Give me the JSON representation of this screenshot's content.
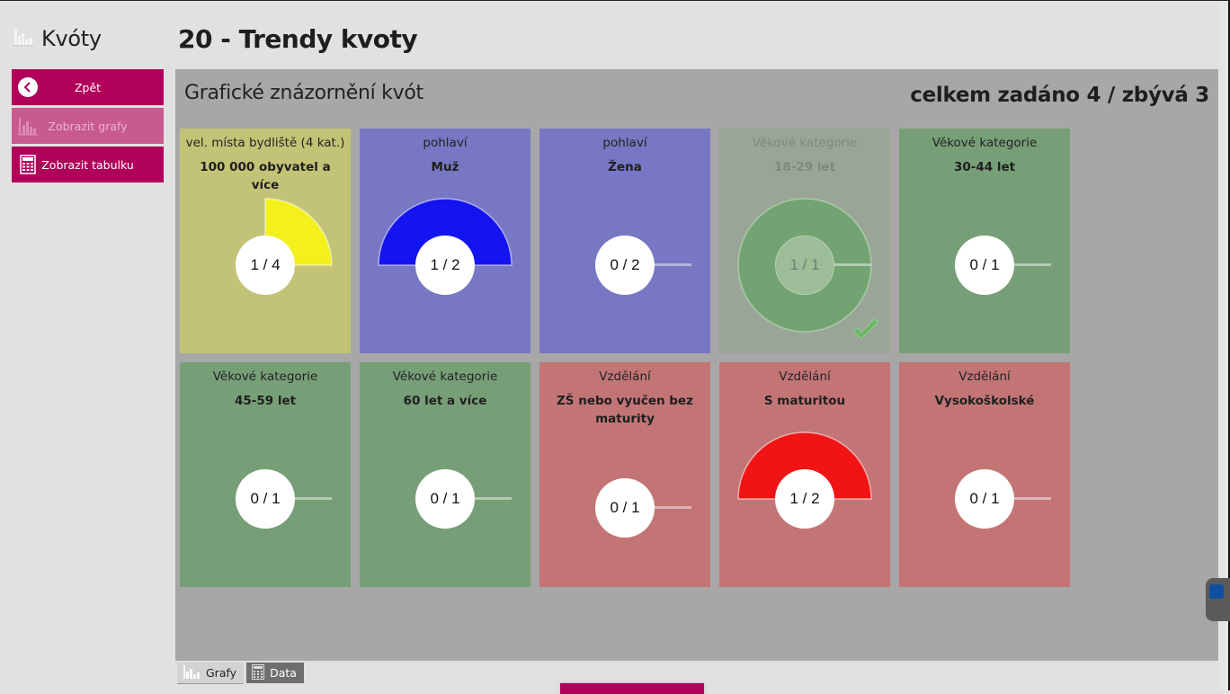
{
  "app": {
    "title": "Kvóty",
    "icon": "bar-chart-icon"
  },
  "page_title": "20 - Trendy kvoty",
  "sidebar": {
    "buttons": [
      {
        "label": "Zpět",
        "icon": "back-arrow-icon",
        "enabled": true
      },
      {
        "label": "Zobrazit grafy",
        "icon": "bar-chart-icon",
        "enabled": false
      },
      {
        "label": "Zobrazit tabulku",
        "icon": "calculator-icon",
        "enabled": true
      }
    ]
  },
  "panel": {
    "title": "Grafické znázornění kvót",
    "summary": "celkem zadáno 4 / zbývá 3"
  },
  "cards": [
    {
      "category": "vel. místa bydliště (4 kat.)",
      "value": "100 000 obyvatel a více",
      "ratio": "1 / 4",
      "done": 1,
      "total": 4,
      "bg": "#c3c377",
      "fill": "#f3f01c",
      "complete": false
    },
    {
      "category": "pohlaví",
      "value": "Muž",
      "ratio": "1 / 2",
      "done": 1,
      "total": 2,
      "bg": "#7777c3",
      "fill": "#1414f0",
      "complete": false
    },
    {
      "category": "pohlaví",
      "value": "Žena",
      "ratio": "0 / 2",
      "done": 0,
      "total": 2,
      "bg": "#7777c3",
      "fill": "#1414f0",
      "complete": false
    },
    {
      "category": "Věkové kategorie",
      "value": "18-29 let",
      "ratio": "1 / 1",
      "done": 1,
      "total": 1,
      "bg": "#9aa598",
      "fill": "#73a372",
      "complete": true
    },
    {
      "category": "Věkové kategorie",
      "value": "30-44 let",
      "ratio": "0 / 1",
      "done": 0,
      "total": 1,
      "bg": "#779f77",
      "fill": "#2eb82e",
      "complete": false
    },
    {
      "category": "Věkové kategorie",
      "value": "45-59 let",
      "ratio": "0 / 1",
      "done": 0,
      "total": 1,
      "bg": "#779f77",
      "fill": "#2eb82e",
      "complete": false
    },
    {
      "category": "Věkové kategorie",
      "value": "60 let a více",
      "ratio": "0 / 1",
      "done": 0,
      "total": 1,
      "bg": "#779f77",
      "fill": "#2eb82e",
      "complete": false
    },
    {
      "category": "Vzdělání",
      "value": "ZŠ nebo vyučen bez maturity",
      "ratio": "0 / 1",
      "done": 0,
      "total": 1,
      "bg": "#c37575",
      "fill": "#f01414",
      "complete": false
    },
    {
      "category": "Vzdělání",
      "value": "S maturitou",
      "ratio": "1 / 2",
      "done": 1,
      "total": 2,
      "bg": "#c37575",
      "fill": "#f01414",
      "complete": false
    },
    {
      "category": "Vzdělání",
      "value": "Vysokoškolské",
      "ratio": "0 / 1",
      "done": 0,
      "total": 1,
      "bg": "#c37575",
      "fill": "#f01414",
      "complete": false
    }
  ],
  "bottom_tabs": [
    {
      "label": "Grafy",
      "icon": "bar-chart-icon",
      "active": true
    },
    {
      "label": "Data",
      "icon": "calculator-icon",
      "active": false
    }
  ],
  "colors": {
    "accent": "#b0005a",
    "panel": "#a7a7a7",
    "background": "#e1e1e1"
  }
}
